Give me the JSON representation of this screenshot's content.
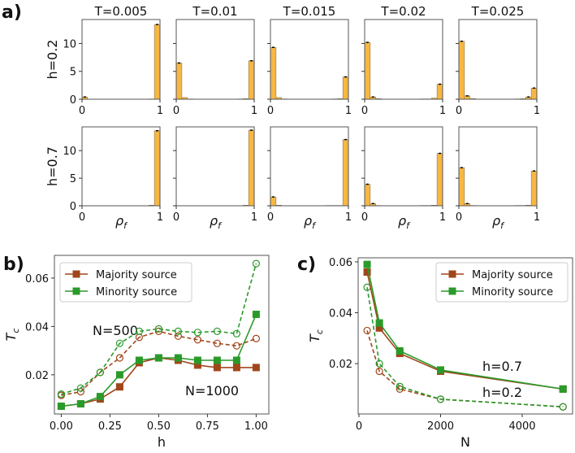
{
  "panel_labels": {
    "a": "a)",
    "b": "b)",
    "c": "c)"
  },
  "colors": {
    "bar": "#f7b742",
    "bar_edge": "#8a7a5a",
    "majority": "#a0461a",
    "minority": "#2a9a2a",
    "axis": "#555555"
  },
  "chart_data": [
    {
      "id": "a",
      "type": "bar",
      "kind": "histogram-grid",
      "bins": 14,
      "xlabel": "ρf",
      "xticks": [
        "0",
        "1"
      ],
      "yticks": [
        0,
        5,
        10
      ],
      "ylim": [
        0,
        14.3
      ],
      "columns": [
        "T=0.005",
        "T=0.01",
        "T=0.015",
        "T=0.02",
        "T=0.025"
      ],
      "rows": [
        {
          "label": "h=0.2",
          "panels": [
            [
              0.4,
              0,
              0,
              0,
              0,
              0,
              0,
              0,
              0,
              0,
              0,
              0,
              0.05,
              13.4
            ],
            [
              6.5,
              0.3,
              0.05,
              0,
              0,
              0,
              0,
              0,
              0,
              0,
              0,
              0.05,
              0.1,
              6.9
            ],
            [
              9.3,
              0.3,
              0.05,
              0,
              0,
              0,
              0,
              0,
              0,
              0,
              0,
              0.05,
              0.1,
              4.0
            ],
            [
              10.2,
              0.4,
              0.1,
              0,
              0,
              0,
              0,
              0,
              0,
              0,
              0.05,
              0.05,
              0.2,
              2.7
            ],
            [
              10.4,
              0.6,
              0.1,
              0,
              0,
              0,
              0,
              0,
              0,
              0,
              0.05,
              0.1,
              0.4,
              2.0
            ]
          ]
        },
        {
          "label": "h=0.7",
          "panels": [
            [
              0,
              0,
              0,
              0,
              0,
              0,
              0,
              0,
              0,
              0,
              0,
              0,
              0.1,
              13.6
            ],
            [
              0,
              0,
              0,
              0,
              0,
              0,
              0,
              0,
              0,
              0,
              0,
              0,
              0.1,
              13.7
            ],
            [
              1.6,
              0.1,
              0,
              0,
              0,
              0,
              0,
              0,
              0,
              0,
              0.05,
              0.05,
              0.05,
              12.0
            ],
            [
              3.9,
              0.4,
              0.05,
              0,
              0,
              0,
              0,
              0,
              0,
              0,
              0.05,
              0.05,
              0.1,
              9.5
            ],
            [
              6.9,
              0.4,
              0.05,
              0,
              0,
              0,
              0,
              0,
              0,
              0,
              0.05,
              0.05,
              0.1,
              6.3
            ]
          ]
        }
      ]
    },
    {
      "id": "b",
      "type": "line",
      "xlabel": "h",
      "ylabel": "T_c",
      "xlim": [
        -0.035,
        1.065
      ],
      "ylim": [
        0.0038,
        0.0694
      ],
      "xticks": [
        0,
        0.25,
        0.5,
        0.75,
        1.0
      ],
      "xtick_labels": [
        "0.00",
        "0.25",
        "0.50",
        "0.75",
        "1.00"
      ],
      "yticks": [
        0.02,
        0.04,
        0.06
      ],
      "ytick_labels": [
        "0.02",
        "0.04",
        "0.06"
      ],
      "x": [
        0,
        0.1,
        0.2,
        0.3,
        0.4,
        0.5,
        0.6,
        0.7,
        0.8,
        0.9,
        1.0
      ],
      "series": [
        {
          "name": "Majority source",
          "group": "N=500",
          "color": "majority",
          "style": "dashed-open",
          "values": [
            0.0115,
            0.013,
            0.021,
            0.027,
            0.0355,
            0.038,
            0.036,
            0.0345,
            0.033,
            0.032,
            0.035
          ]
        },
        {
          "name": "Minority source",
          "group": "N=500",
          "color": "minority",
          "style": "dashed-open",
          "values": [
            0.012,
            0.0145,
            0.021,
            0.033,
            0.038,
            0.039,
            0.038,
            0.0375,
            0.038,
            0.037,
            0.066
          ]
        },
        {
          "name": "Majority source",
          "group": "N=1000",
          "color": "majority",
          "style": "solid-square",
          "values": [
            0.007,
            0.008,
            0.01,
            0.015,
            0.025,
            0.027,
            0.026,
            0.024,
            0.023,
            0.023,
            0.023
          ]
        },
        {
          "name": "Minority source",
          "group": "N=1000",
          "color": "minority",
          "style": "solid-square",
          "values": [
            0.007,
            0.008,
            0.011,
            0.02,
            0.026,
            0.027,
            0.027,
            0.026,
            0.026,
            0.026,
            0.045
          ]
        }
      ],
      "legend": [
        "Majority source",
        "Minority source"
      ],
      "legend_position": "top-left",
      "annotations": [
        "N=500",
        "N=1000"
      ]
    },
    {
      "id": "c",
      "type": "line",
      "xlabel": "N",
      "ylabel": "T_c",
      "xlim": [
        -20,
        5234
      ],
      "ylim": [
        0.0002,
        0.0616
      ],
      "xticks": [
        0,
        2000,
        4000
      ],
      "xtick_labels": [
        "0",
        "2000",
        "4000"
      ],
      "yticks": [
        0.02,
        0.04,
        0.06
      ],
      "ytick_labels": [
        "0.02",
        "0.04",
        "0.06"
      ],
      "x": [
        200,
        500,
        1000,
        2000,
        5000
      ],
      "series": [
        {
          "name": "Majority source",
          "group": "h=0.2",
          "color": "majority",
          "style": "dashed-open",
          "values": [
            0.033,
            0.017,
            0.01,
            0.006,
            0.003
          ]
        },
        {
          "name": "Minority source",
          "group": "h=0.2",
          "color": "minority",
          "style": "dashed-open",
          "values": [
            0.05,
            0.02,
            0.011,
            0.006,
            0.003
          ]
        },
        {
          "name": "Majority source",
          "group": "h=0.7",
          "color": "majority",
          "style": "solid-square",
          "values": [
            0.056,
            0.034,
            0.024,
            0.017,
            0.01
          ]
        },
        {
          "name": "Minority source",
          "group": "h=0.7",
          "color": "minority",
          "style": "solid-square",
          "values": [
            0.059,
            0.036,
            0.025,
            0.0175,
            0.01
          ]
        }
      ],
      "legend": [
        "Majority source",
        "Minority source"
      ],
      "legend_position": "top-right",
      "annotations": [
        "h=0.7",
        "h=0.2"
      ]
    }
  ]
}
